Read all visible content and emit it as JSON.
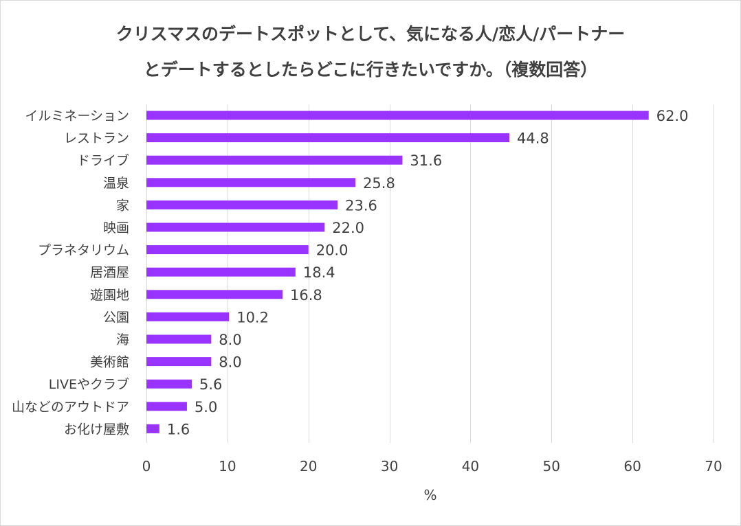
{
  "chart_data": {
    "type": "bar",
    "orientation": "horizontal",
    "title": [
      "クリスマスのデートスポットとして、気になる人/恋人/パートナー",
      "とデートするとしたらどこに行きたいですか。（複数回答）"
    ],
    "xlabel": "%",
    "ylabel": "",
    "xlim": [
      0,
      70
    ],
    "xticks": [
      0,
      10,
      20,
      30,
      40,
      50,
      60,
      70
    ],
    "grid": true,
    "bar_color": "#9933ff",
    "categories": [
      "イルミネーション",
      "レストラン",
      "ドライブ",
      "温泉",
      "家",
      "映画",
      "プラネタリウム",
      "居酒屋",
      "遊園地",
      "公園",
      "海",
      "美術館",
      "LIVEやクラブ",
      "山などのアウトドア",
      "お化け屋敷"
    ],
    "values": [
      62.0,
      44.8,
      31.6,
      25.8,
      23.6,
      22.0,
      20.0,
      18.4,
      16.8,
      10.2,
      8.0,
      8.0,
      5.6,
      5.0,
      1.6
    ],
    "value_labels": [
      "62.0",
      "44.8",
      "31.6",
      "25.8",
      "23.6",
      "22.0",
      "20.0",
      "18.4",
      "16.8",
      "10.2",
      "8.0",
      "8.0",
      "5.6",
      "5.0",
      "1.6"
    ]
  }
}
